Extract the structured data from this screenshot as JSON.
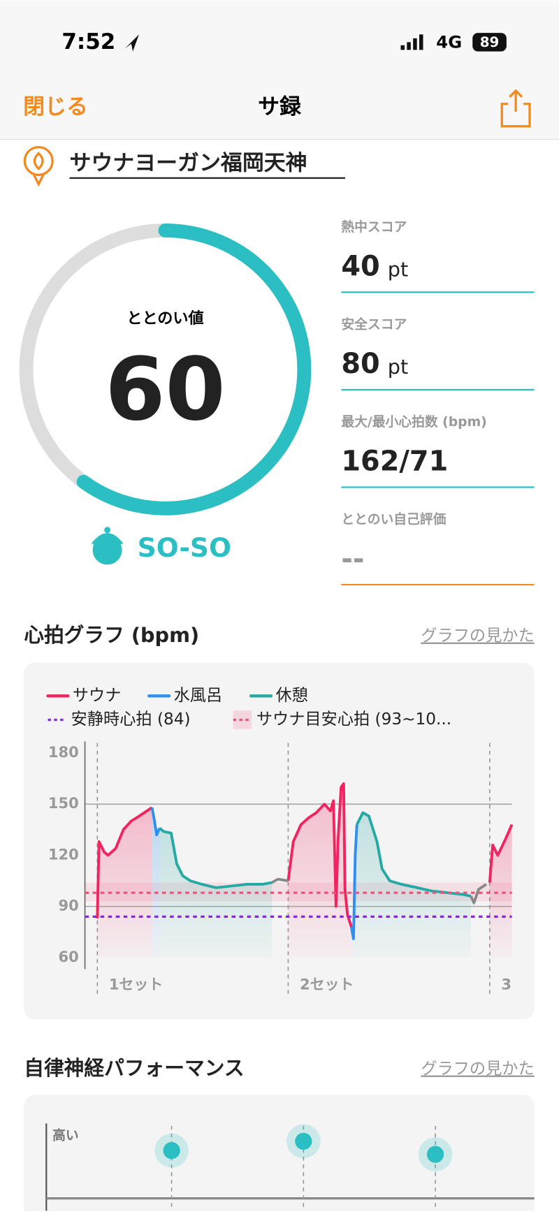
{
  "status_bar": {
    "time": "7:52",
    "network": "4G",
    "battery": "89"
  },
  "nav": {
    "close": "閉じる",
    "title": "サ録"
  },
  "facility": "サウナヨーガン福岡天神",
  "score": {
    "label": "ととのい値",
    "value": 60,
    "gauge_range": [
      0,
      100
    ],
    "rating": "SO-SO"
  },
  "stats": [
    {
      "label": "熱中スコア",
      "value": 40,
      "unit": "pt"
    },
    {
      "label": "安全スコア",
      "value": 80,
      "unit": "pt"
    },
    {
      "label": "最大/最小心拍数 (bpm)",
      "value": "162/71"
    },
    {
      "label": "ととのい自己評価",
      "value": "--"
    }
  ],
  "chart_data": [
    {
      "type": "line",
      "title": "心拍グラフ (bpm)",
      "link": "グラフの見かた",
      "xlim": [
        0,
        100
      ],
      "ylim": [
        60,
        180
      ],
      "yticks": [
        180,
        150,
        120,
        90,
        60
      ],
      "gridlines": [
        150,
        90
      ],
      "series": [
        {
          "name": "サウナ",
          "color": "#f0245e",
          "x": [
            2.9,
            3.3,
            4.5,
            5.4,
            7.2,
            9.0,
            10.8,
            12.7,
            14.5,
            15.7,
            null,
            47.6,
            48.8,
            50.6,
            52.4,
            54.2,
            56.1,
            57.5,
            58.2,
            58.8,
            59.3,
            60.0,
            60.6,
            60.9,
            61.5,
            62.4,
            null,
            94.8,
            95.5,
            96.7,
            98.6,
            100
          ],
          "values": [
            83,
            128,
            122,
            120,
            124,
            135,
            140,
            143,
            146,
            148,
            null,
            105,
            128,
            138,
            142,
            145,
            150,
            146,
            152,
            90,
            130,
            160,
            162,
            100,
            85,
            78,
            null,
            104,
            126,
            120,
            130,
            138
          ]
        },
        {
          "name": "水風呂",
          "color": "#2f8ff0",
          "x": [
            15.7,
            16.3,
            16.8,
            17.5,
            null,
            62.4,
            62.9,
            63.3,
            63.7
          ],
          "values": [
            148,
            140,
            132,
            136,
            null,
            78,
            71,
            120,
            138
          ]
        },
        {
          "name": "休憩",
          "color": "#25a9a3",
          "x": [
            17.5,
            18.4,
            20.2,
            21.5,
            22.9,
            24.7,
            27.4,
            30.7,
            34.4,
            38.0,
            41.6,
            43.8,
            null,
            63.7,
            65.1,
            66.5,
            68.4,
            69.6,
            71.4,
            74.1,
            77.8,
            81.4,
            85.0,
            88.6,
            90.4
          ],
          "values": [
            136,
            134,
            133,
            115,
            108,
            105,
            103,
            101,
            102,
            103,
            103,
            104,
            null,
            138,
            145,
            143,
            128,
            112,
            105,
            103,
            101,
            99,
            98,
            97,
            96
          ]
        },
        {
          "color": "#888888",
          "x": [
            43.8,
            45.2,
            47.6,
            null,
            90.4,
            91.1,
            92.2,
            94.0
          ],
          "values": [
            104,
            106,
            105,
            null,
            96,
            92,
            100,
            103
          ]
        }
      ],
      "reference_lines": [
        {
          "label": "安静時心拍 (84)",
          "value": 84,
          "color": "#8a2be2"
        },
        {
          "label": "サウナ目安心拍 (93~10...",
          "value": 98,
          "range": [
            93,
            104
          ],
          "color": "#f0507a"
        }
      ],
      "sets": [
        {
          "x": 2.9,
          "label": "1セット"
        },
        {
          "x": 47.6,
          "label": "2セット"
        },
        {
          "x": 94.8,
          "label": "3"
        }
      ]
    },
    {
      "type": "scatter",
      "title": "自律神経パフォーマンス",
      "link": "グラフの見かた",
      "y_label": "高い",
      "xlim": [
        0.05,
        3.75
      ],
      "ylim": [
        0,
        100
      ],
      "x": [
        1,
        2,
        3
      ],
      "values": [
        65,
        77,
        60
      ],
      "color": "#2bbfc4"
    }
  ]
}
